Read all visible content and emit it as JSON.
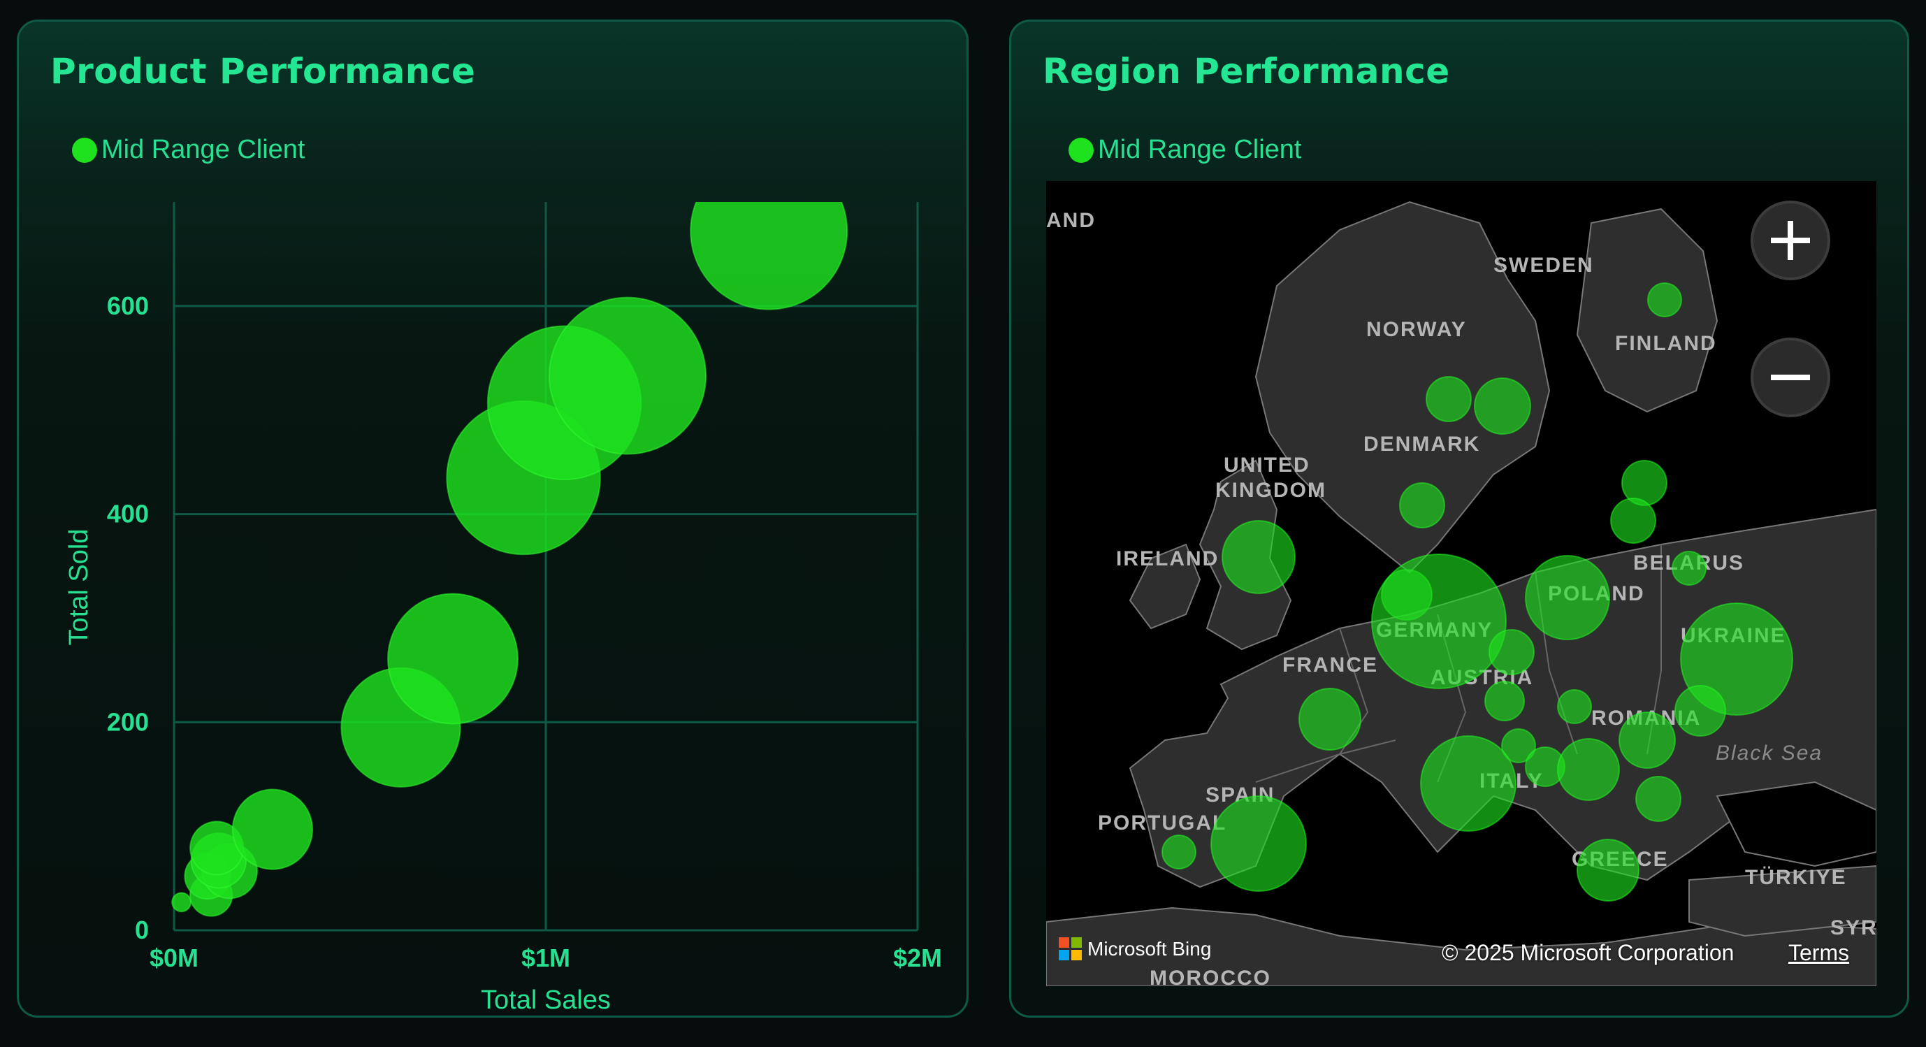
{
  "colors": {
    "accent": "#25e692",
    "bubble": "#1ee21e",
    "grid": "#0f5a46",
    "tick": "#27e091"
  },
  "product": {
    "title": "Product Performance",
    "legend_label": "Mid Range Client"
  },
  "region": {
    "title": "Region Performance",
    "legend_label": "Mid Range Client",
    "zoom_in_icon": "plus-icon",
    "zoom_out_icon": "minus-icon",
    "bing_label": "Microsoft Bing",
    "copyright": "© 2025 Microsoft Corporation",
    "terms": "Terms",
    "map_labels": [
      "AND",
      "SWEDEN",
      "NORWAY",
      "FINLAND",
      "DENMARK",
      "UNITED",
      "KINGDOM",
      "IRELAND",
      "BELARUS",
      "POLAND",
      "GERMANY",
      "UKRAINE",
      "FRANCE",
      "AUSTRIA",
      "ROMANIA",
      "Black Sea",
      "ITALY",
      "SPAIN",
      "PORTUGAL",
      "GREECE",
      "TÜRKIYE",
      "SYRIA",
      "MOROCCO"
    ],
    "map_bubbles": [
      {
        "country": "Finland",
        "size": 0.06
      },
      {
        "country": "Norway",
        "size": 0.08
      },
      {
        "country": "Sweden",
        "size": 0.1
      },
      {
        "country": "Denmark",
        "size": 0.08
      },
      {
        "country": "Latvia",
        "size": 0.08
      },
      {
        "country": "Lithuania",
        "size": 0.08
      },
      {
        "country": "United Kingdom",
        "size": 0.13
      },
      {
        "country": "Netherlands",
        "size": 0.09
      },
      {
        "country": "Belarus",
        "size": 0.06
      },
      {
        "country": "Germany",
        "size": 0.24
      },
      {
        "country": "Poland",
        "size": 0.15
      },
      {
        "country": "Czechia",
        "size": 0.08
      },
      {
        "country": "Ukraine",
        "size": 0.2
      },
      {
        "country": "France",
        "size": 0.11
      },
      {
        "country": "Austria",
        "size": 0.07
      },
      {
        "country": "Hungary",
        "size": 0.06
      },
      {
        "country": "Romania",
        "size": 0.1
      },
      {
        "country": "Moldova",
        "size": 0.09
      },
      {
        "country": "Slovenia",
        "size": 0.06
      },
      {
        "country": "Croatia",
        "size": 0.07
      },
      {
        "country": "Serbia",
        "size": 0.11
      },
      {
        "country": "Italy",
        "size": 0.17
      },
      {
        "country": "Bulgaria",
        "size": 0.08
      },
      {
        "country": "Spain",
        "size": 0.17
      },
      {
        "country": "Portugal",
        "size": 0.06
      },
      {
        "country": "Greece",
        "size": 0.11
      }
    ]
  },
  "chart_data": {
    "type": "scatter",
    "title": "Product Performance",
    "xlabel": "Total Sales",
    "ylabel": "Total Sold",
    "xlim": [
      0,
      2000000
    ],
    "ylim": [
      0,
      700
    ],
    "xticks": [
      {
        "value": 0,
        "label": "$0M"
      },
      {
        "value": 1000000,
        "label": "$1M"
      },
      {
        "value": 2000000,
        "label": "$2M"
      }
    ],
    "yticks": [
      {
        "value": 0,
        "label": "0"
      },
      {
        "value": 200,
        "label": "200"
      },
      {
        "value": 400,
        "label": "400"
      },
      {
        "value": 600,
        "label": "600"
      }
    ],
    "grid": true,
    "legend_position": "top-left",
    "series": [
      {
        "name": "Mid Range Client",
        "points": [
          {
            "x": 20000,
            "y": 27,
            "size": 0.12
          },
          {
            "x": 100000,
            "y": 34,
            "size": 0.27
          },
          {
            "x": 90000,
            "y": 52,
            "size": 0.29
          },
          {
            "x": 150000,
            "y": 57,
            "size": 0.35
          },
          {
            "x": 120000,
            "y": 67,
            "size": 0.35
          },
          {
            "x": 115000,
            "y": 79,
            "size": 0.34
          },
          {
            "x": 265000,
            "y": 97,
            "size": 0.51
          },
          {
            "x": 610000,
            "y": 195,
            "size": 0.76
          },
          {
            "x": 750000,
            "y": 261,
            "size": 0.83
          },
          {
            "x": 940000,
            "y": 435,
            "size": 0.98
          },
          {
            "x": 1050000,
            "y": 507,
            "size": 0.98
          },
          {
            "x": 1220000,
            "y": 533,
            "size": 1.0
          },
          {
            "x": 1600000,
            "y": 672,
            "size": 1.0
          }
        ]
      }
    ]
  }
}
